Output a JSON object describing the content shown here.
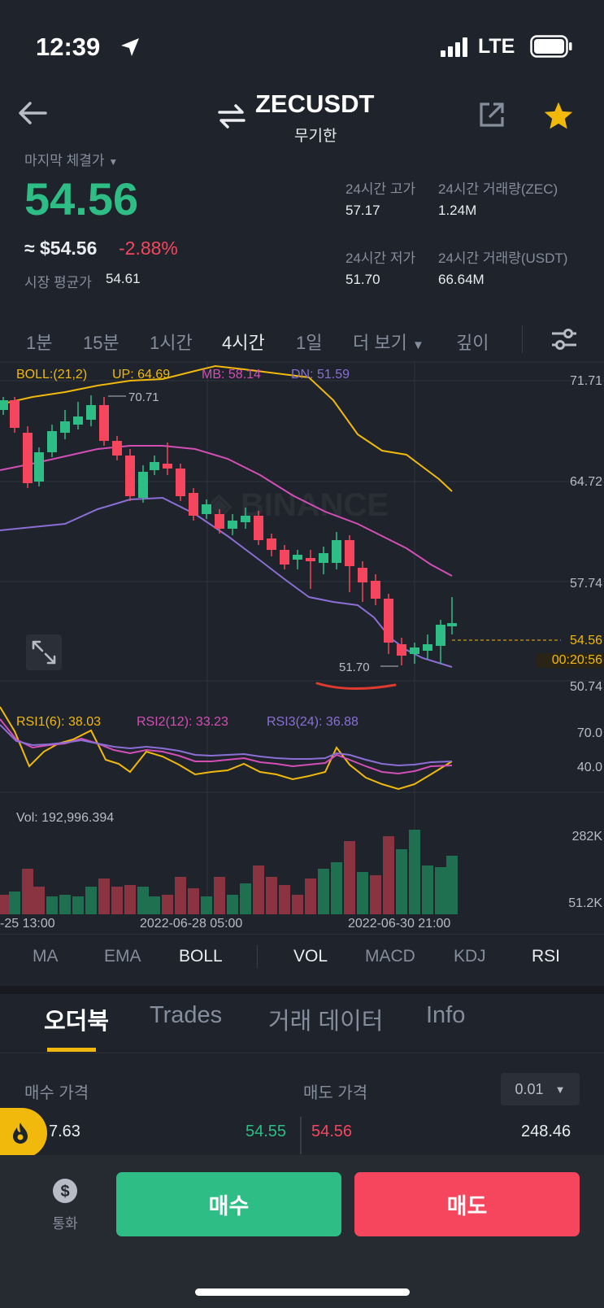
{
  "status_bar": {
    "time": "12:39",
    "network": "LTE"
  },
  "header": {
    "symbol": "ZECUSDT",
    "contract": "무기한"
  },
  "ticker": {
    "last_price_label": "마지막 체결가",
    "last_price": "54.56",
    "usd_price": "≈ $54.56",
    "change": "-2.88%",
    "mark_label": "시장 평균가",
    "mark_price": "54.61",
    "high_label": "24시간 고가",
    "high": "57.17",
    "low_label": "24시간 저가",
    "low": "51.70",
    "vol_base_label": "24시간 거래량(ZEC)",
    "vol_base": "1.24M",
    "vol_quote_label": "24시간 거래량(USDT)",
    "vol_quote": "66.64M"
  },
  "timeframes": [
    "1분",
    "15분",
    "1시간",
    "4시간",
    "1일",
    "더 보기",
    "깊이"
  ],
  "chart": {
    "boll_label": "BOLL:(21,2)",
    "up": "UP: 64.69",
    "mb": "MB: 58.14",
    "dn": "DN: 51.59",
    "price_axis": [
      "71.71",
      "64.72",
      "57.74",
      "50.74"
    ],
    "current_price": "54.56",
    "countdown": "00:20:56",
    "high_marker": "70.71",
    "low_marker": "51.70",
    "watermark": "BINANCE",
    "rsi1": "RSI1(6): 38.03",
    "rsi2": "RSI2(12): 33.23",
    "rsi3": "RSI3(24): 36.88",
    "rsi_axis": [
      "70.0",
      "40.0"
    ],
    "vol_label": "Vol: 192,996.394",
    "vol_axis": [
      "282K",
      "51.2K"
    ],
    "dates": [
      "-25 13:00",
      "2022-06-28 05:00",
      "2022-06-30 21:00"
    ],
    "colors": {
      "up": "#2ebd85",
      "down": "#f6465d",
      "boll_up": "#f0b90b",
      "boll_mb": "#d34fb6",
      "boll_dn": "#8b6fd6"
    }
  },
  "indicators": [
    "MA",
    "EMA",
    "BOLL",
    "VOL",
    "MACD",
    "KDJ",
    "RSI"
  ],
  "tabs": [
    "오더북",
    "Trades",
    "거래 데이터",
    "Info"
  ],
  "orderbook": {
    "bid_header": "매수 가격",
    "ask_header": "매도 가격",
    "precision": "0.01",
    "bid_qty": "7.63",
    "bid_price": "54.55",
    "ask_price": "54.56",
    "ask_qty": "248.46"
  },
  "bottom": {
    "currency_label": "통화",
    "buy": "매수",
    "sell": "매도"
  }
}
